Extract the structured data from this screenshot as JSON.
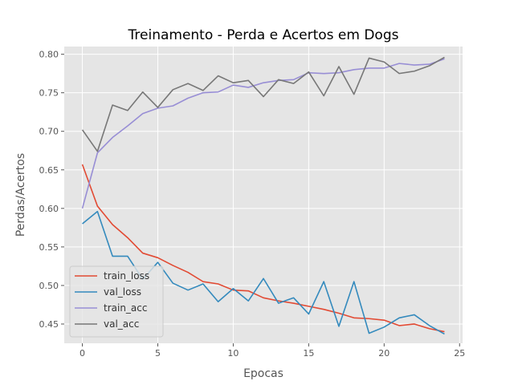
{
  "chart_data": {
    "type": "line",
    "title": "Treinamento - Perda e Acertos em Dogs",
    "xlabel": "Epocas",
    "ylabel": "Perdas/Acertos",
    "xlim": [
      -1.2,
      25.2
    ],
    "ylim": [
      0.425,
      0.81
    ],
    "xticks": [
      0,
      5,
      10,
      15,
      20,
      25
    ],
    "yticks": [
      0.45,
      0.5,
      0.55,
      0.6,
      0.65,
      0.7,
      0.75,
      0.8
    ],
    "ytick_labels": [
      "0.45",
      "0.50",
      "0.55",
      "0.60",
      "0.65",
      "0.70",
      "0.75",
      "0.80"
    ],
    "grid": true,
    "legend_position": "lower-left",
    "x": [
      0,
      1,
      2,
      3,
      4,
      5,
      6,
      7,
      8,
      9,
      10,
      11,
      12,
      13,
      14,
      15,
      16,
      17,
      18,
      19,
      20,
      21,
      22,
      23,
      24
    ],
    "series": [
      {
        "name": "train_loss",
        "color": "#E24A33",
        "values": [
          0.657,
          0.603,
          0.579,
          0.562,
          0.542,
          0.536,
          0.526,
          0.517,
          0.505,
          0.502,
          0.494,
          0.493,
          0.484,
          0.48,
          0.477,
          0.473,
          0.469,
          0.464,
          0.458,
          0.457,
          0.455,
          0.448,
          0.45,
          0.444,
          0.44
        ]
      },
      {
        "name": "val_loss",
        "color": "#348ABD",
        "values": [
          0.58,
          0.596,
          0.538,
          0.538,
          0.508,
          0.53,
          0.503,
          0.494,
          0.502,
          0.479,
          0.496,
          0.48,
          0.509,
          0.477,
          0.484,
          0.463,
          0.505,
          0.447,
          0.505,
          0.438,
          0.446,
          0.458,
          0.462,
          0.448,
          0.437
        ]
      },
      {
        "name": "train_acc",
        "color": "#988ED5",
        "values": [
          0.6,
          0.672,
          0.692,
          0.707,
          0.723,
          0.73,
          0.733,
          0.743,
          0.75,
          0.751,
          0.76,
          0.757,
          0.763,
          0.766,
          0.767,
          0.776,
          0.775,
          0.776,
          0.78,
          0.782,
          0.782,
          0.788,
          0.786,
          0.787,
          0.794
        ]
      },
      {
        "name": "val_acc",
        "color": "#777777",
        "values": [
          0.702,
          0.674,
          0.734,
          0.727,
          0.751,
          0.731,
          0.754,
          0.762,
          0.753,
          0.772,
          0.763,
          0.766,
          0.745,
          0.767,
          0.762,
          0.777,
          0.746,
          0.784,
          0.748,
          0.795,
          0.79,
          0.775,
          0.778,
          0.785,
          0.796
        ]
      }
    ]
  }
}
